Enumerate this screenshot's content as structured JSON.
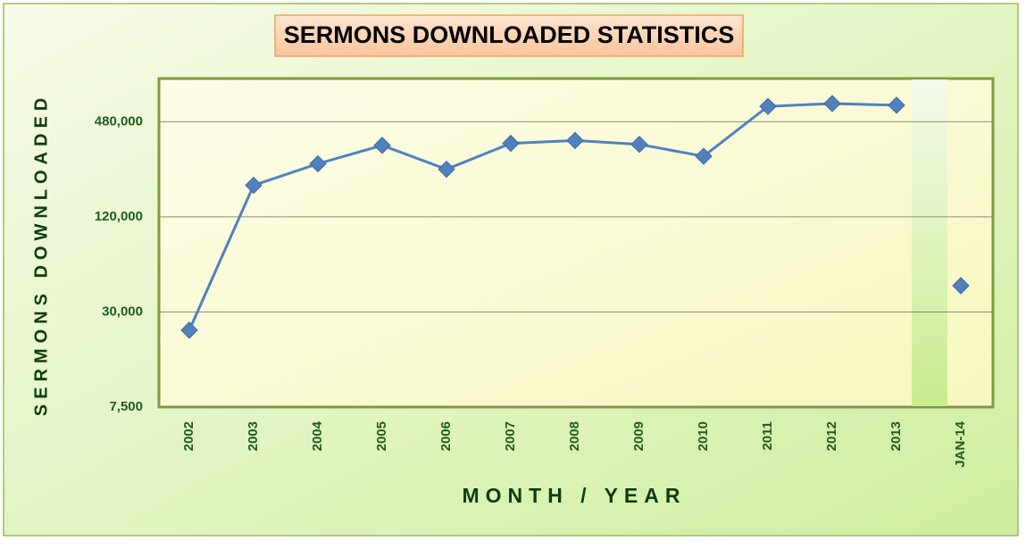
{
  "chart_data": {
    "type": "line",
    "title": "SERMONS DOWNLOADED STATISTICS",
    "x_label": "MONTH / YEAR",
    "y_label": "SERMONS DOWNLOADED",
    "categories": [
      "2002",
      "2003",
      "2004",
      "2005",
      "2006",
      "2007",
      "2008",
      "2009",
      "2010",
      "2011",
      "2012",
      "2013",
      "JAN-14"
    ],
    "series": [
      {
        "color": "#4f81bd",
        "values": [
          23000,
          190000,
          260000,
          340000,
          240000,
          350000,
          365000,
          345000,
          290000,
          600000,
          625000,
          610000,
          null
        ]
      },
      {
        "color": "#4f81bd",
        "values": [
          null,
          null,
          null,
          null,
          null,
          null,
          null,
          null,
          null,
          null,
          null,
          null,
          44000
        ]
      }
    ],
    "log_scale": true,
    "ylim": [
      7500,
      900000
    ],
    "yticks": [
      {
        "value": 7500,
        "label": "7,500"
      },
      {
        "value": 30000,
        "label": "30,000"
      },
      {
        "value": 120000,
        "label": "120,000"
      },
      {
        "value": 480000,
        "label": "480,000"
      }
    ],
    "grid": true
  }
}
